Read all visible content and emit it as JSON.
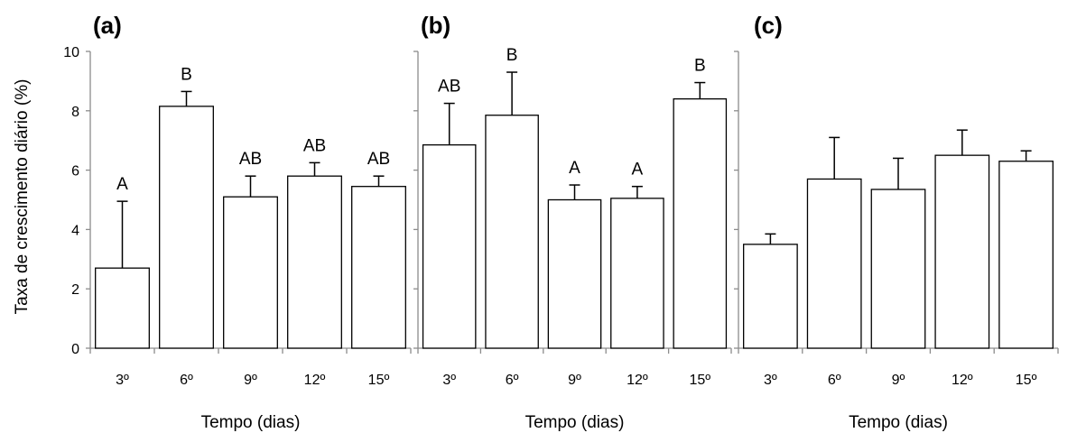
{
  "ylabel": "Taxa de crescimento diário (%)",
  "chart_data": [
    {
      "type": "bar",
      "panel": "(a)",
      "xlabel": "Tempo (dias)",
      "ylabel": "Taxa de crescimento diário (%)",
      "ylim": [
        0,
        10
      ],
      "yticks": [
        "0",
        "2",
        "4",
        "6",
        "8",
        "10"
      ],
      "categories": [
        "3º",
        "6º",
        "9º",
        "12º",
        "15º"
      ],
      "values": [
        2.7,
        8.15,
        5.1,
        5.8,
        5.45
      ],
      "errors": [
        2.25,
        0.5,
        0.7,
        0.45,
        0.35
      ],
      "labels": [
        "A",
        "B",
        "AB",
        "AB",
        "AB"
      ]
    },
    {
      "type": "bar",
      "panel": "(b)",
      "xlabel": "Tempo (dias)",
      "ylim": [
        0,
        10
      ],
      "categories": [
        "3º",
        "6º",
        "9º",
        "12º",
        "15º"
      ],
      "values": [
        6.85,
        7.85,
        5.0,
        5.05,
        8.4
      ],
      "errors": [
        1.4,
        1.45,
        0.5,
        0.4,
        0.55
      ],
      "labels": [
        "AB",
        "B",
        "A",
        "A",
        "B"
      ]
    },
    {
      "type": "bar",
      "panel": "(c)",
      "xlabel": "Tempo (dias)",
      "ylim": [
        0,
        10
      ],
      "categories": [
        "3º",
        "6º",
        "9º",
        "12º",
        "15º"
      ],
      "values": [
        3.5,
        5.7,
        5.35,
        6.5,
        6.3
      ],
      "errors": [
        0.35,
        1.4,
        1.05,
        0.85,
        0.35
      ],
      "labels": [
        "",
        "",
        "",
        "",
        ""
      ]
    }
  ]
}
